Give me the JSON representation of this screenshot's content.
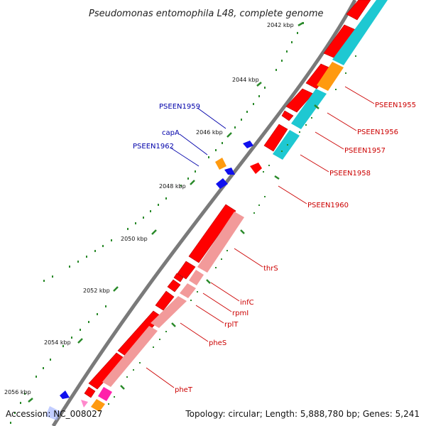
{
  "title": "Pseudomonas entomophila L48, complete genome",
  "footer": {
    "accession": "Accession: NC_008027",
    "summary": "Topology: circular; Length: 5,888,780 bp; Genes: 5,241"
  },
  "colors": {
    "backbone": "#7a7a7a",
    "forward_cds": "#ff0000",
    "reverse_cds": "#ff0000",
    "track_cyan": "#1ec8d2",
    "track_orange": "#ff9a10",
    "track_pink": "#f29a9a",
    "track_magenta": "#ff22aa",
    "small_gene_blue": "#1010ee",
    "tick_green": "#2a8a2a",
    "label_red": "#cc0000",
    "label_blue": "#0000aa"
  },
  "scale_ticks": [
    {
      "label": "2042 kbp"
    },
    {
      "label": "2044 kbp"
    },
    {
      "label": "2046 kbp"
    },
    {
      "label": "2048 kbp"
    },
    {
      "label": "2050 kbp"
    },
    {
      "label": "2052 kbp"
    },
    {
      "label": "2054 kbp"
    },
    {
      "label": "2056 kbp"
    }
  ],
  "gene_labels_right": [
    {
      "name": "PSEEN1955"
    },
    {
      "name": "PSEEN1956"
    },
    {
      "name": "PSEEN1957"
    },
    {
      "name": "PSEEN1958"
    },
    {
      "name": "PSEEN1960"
    },
    {
      "name": "thrS"
    },
    {
      "name": "infC"
    },
    {
      "name": "rpmI"
    },
    {
      "name": "rplT"
    },
    {
      "name": "pheS"
    },
    {
      "name": "pheT"
    }
  ],
  "gene_labels_left": [
    {
      "name": "PSEEN1959"
    },
    {
      "name": "capA"
    },
    {
      "name": "PSEEN1962"
    }
  ]
}
